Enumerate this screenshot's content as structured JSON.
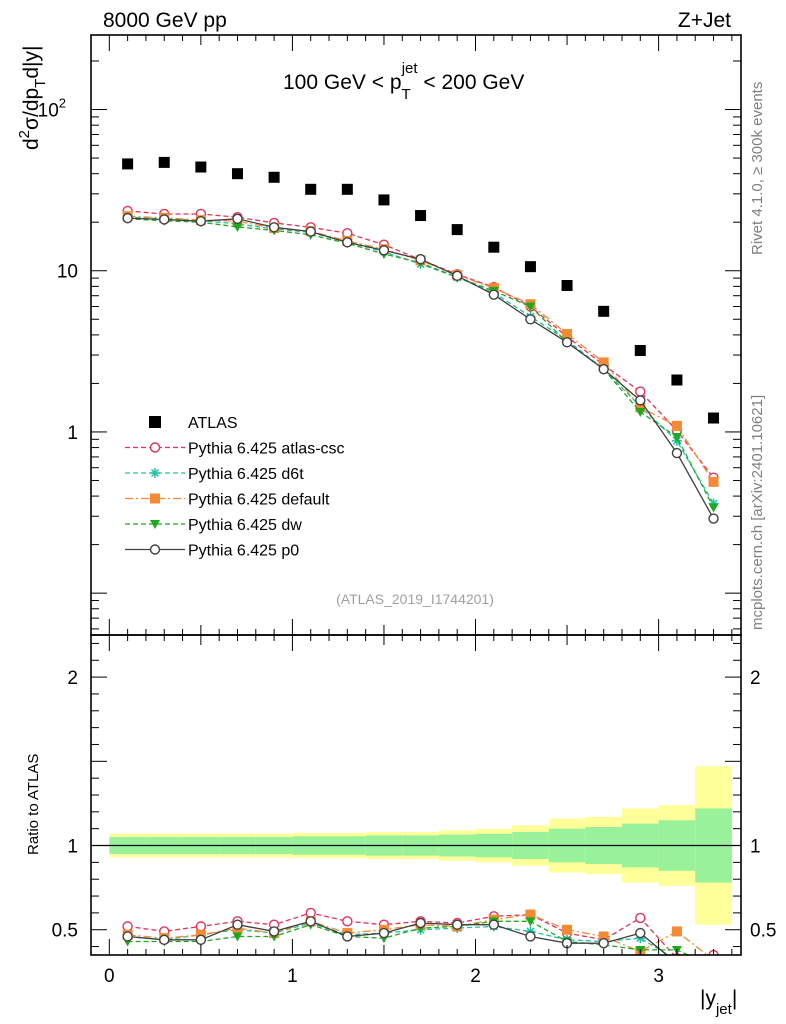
{
  "header": {
    "beam_label": "8000 GeV pp",
    "process_label": "Z+Jet"
  },
  "side_labels": {
    "rivet": "Rivet 4.1.0, ≥ 300k events",
    "mcplots": "mcplots.cern.ch [arXiv:2401.10621]"
  },
  "chart_data": {
    "type": "scatter",
    "analysis_id": "(ATLAS_2019_I1744201)",
    "cut_label": {
      "prefix": "100 GeV < p",
      "sub": "T",
      "sup": "jet",
      "suffix": " < 200 GeV"
    },
    "ylabel": {
      "d": "d",
      "sq": "2",
      "sigma": "σ/dp",
      "t": "T",
      "dy": "d|y|"
    },
    "xlabel": {
      "main": "|y",
      "sub": "jet",
      "close": "|"
    },
    "x": [
      0.1,
      0.3,
      0.5,
      0.7,
      0.9,
      1.1,
      1.3,
      1.5,
      1.7,
      1.9,
      2.1,
      2.3,
      2.5,
      2.7,
      2.9,
      3.1,
      3.3
    ],
    "xlim": [
      -0.1,
      3.45
    ],
    "xticks": [
      "0",
      "1",
      "2",
      "3"
    ],
    "main_ylim": [
      0.055,
      290
    ],
    "main_yticks": [
      {
        "value": 1,
        "label": "1"
      },
      {
        "value": 10,
        "label": "10"
      },
      {
        "value": 100,
        "label": "10",
        "sup": "2"
      }
    ],
    "ratio_ylabel": "Ratio to ATLAS",
    "ratio_ylim": [
      0.35,
      2.25
    ],
    "ratio_yticks": [
      "0.5",
      "1",
      "2"
    ],
    "atlas": {
      "name": "ATLAS",
      "values": [
        46,
        47,
        44,
        40,
        38,
        32,
        32,
        27.5,
        22,
        18,
        14,
        10.6,
        8.1,
        5.6,
        3.2,
        2.1,
        1.22
      ],
      "band_inner": [
        0.05,
        0.05,
        0.05,
        0.05,
        0.05,
        0.055,
        0.055,
        0.06,
        0.06,
        0.065,
        0.07,
        0.08,
        0.1,
        0.11,
        0.13,
        0.15,
        0.22
      ],
      "band_outer": [
        0.07,
        0.07,
        0.07,
        0.07,
        0.07,
        0.075,
        0.075,
        0.08,
        0.08,
        0.09,
        0.1,
        0.12,
        0.16,
        0.17,
        0.22,
        0.24,
        0.47
      ]
    },
    "series": [
      {
        "name": "Pythia 6.425 atlas-csc",
        "color": "#e8305a",
        "marker": "open-circle",
        "dash": "5,3",
        "values": [
          23.5,
          22.5,
          22.5,
          21.5,
          19.8,
          18.6,
          17.1,
          14.5,
          11.7,
          9.5,
          7.9,
          6.0,
          3.9,
          2.6,
          1.78,
          1.02,
          0.52
        ],
        "ratio": [
          0.52,
          0.49,
          0.52,
          0.55,
          0.53,
          0.6,
          0.55,
          0.53,
          0.55,
          0.54,
          0.58,
          0.59,
          0.48,
          0.44,
          0.57,
          0.33,
          0.35
        ]
      },
      {
        "name": "Pythia 6.425 d6t",
        "color": "#1fc3a3",
        "marker": "asterisk",
        "dash": "5,3",
        "values": [
          21.5,
          21.0,
          20.5,
          19.5,
          18.2,
          17.3,
          15.1,
          13.1,
          11.0,
          9.1,
          7.3,
          5.2,
          3.7,
          2.45,
          1.44,
          0.88,
          0.36
        ],
        "ratio": [
          0.46,
          0.44,
          0.47,
          0.5,
          0.48,
          0.54,
          0.47,
          0.48,
          0.5,
          0.51,
          0.52,
          0.49,
          0.44,
          0.43,
          0.45,
          0.32,
          0.3
        ]
      },
      {
        "name": "Pythia 6.425 default",
        "color": "#f58a34",
        "marker": "filled-square",
        "dash": "8,3,2,3",
        "values": [
          21.8,
          21.3,
          20.6,
          20.3,
          18.4,
          17.6,
          15.3,
          13.6,
          11.6,
          9.4,
          7.8,
          6.2,
          4.05,
          2.7,
          1.42,
          1.09,
          0.49
        ],
        "ratio": [
          0.47,
          0.45,
          0.47,
          0.51,
          0.48,
          0.55,
          0.48,
          0.5,
          0.53,
          0.52,
          0.56,
          0.59,
          0.5,
          0.46,
          0.37,
          0.49,
          0.32
        ]
      },
      {
        "name": "Pythia 6.425 dw",
        "color": "#21a821",
        "marker": "filled-triangle-down",
        "dash": "5,3",
        "values": [
          21.0,
          20.4,
          20.0,
          18.7,
          17.8,
          16.7,
          14.8,
          12.7,
          11.2,
          9.1,
          7.5,
          6.0,
          3.6,
          2.45,
          1.33,
          0.93,
          0.34
        ],
        "ratio": [
          0.43,
          0.43,
          0.43,
          0.46,
          0.46,
          0.53,
          0.46,
          0.45,
          0.51,
          0.52,
          0.55,
          0.55,
          0.43,
          0.41,
          0.38,
          0.38,
          0.28
        ]
      },
      {
        "name": "Pythia 6.425 p0",
        "color": "#404040",
        "marker": "open-circle",
        "dash": "",
        "values": [
          21.2,
          20.8,
          20.3,
          21.0,
          18.6,
          17.5,
          15.0,
          13.4,
          11.8,
          9.3,
          7.1,
          5.0,
          3.6,
          2.45,
          1.57,
          0.74,
          0.29
        ],
        "ratio": [
          0.46,
          0.44,
          0.44,
          0.53,
          0.49,
          0.55,
          0.46,
          0.48,
          0.54,
          0.53,
          0.53,
          0.46,
          0.42,
          0.42,
          0.48,
          0.3,
          0.28
        ]
      }
    ]
  }
}
